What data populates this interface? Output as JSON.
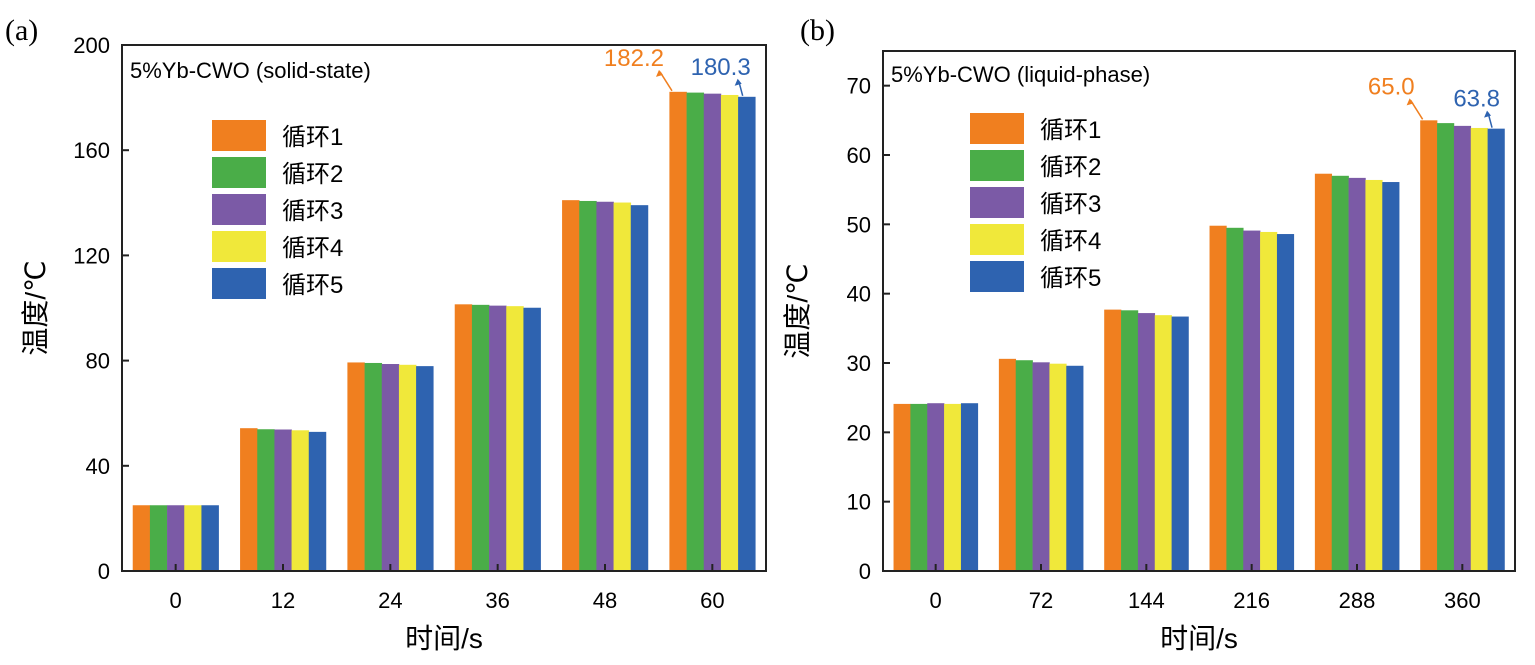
{
  "colors": {
    "series": [
      "#f07f1f",
      "#4aad48",
      "#7b5aa6",
      "#f0e83a",
      "#2e63b0"
    ],
    "axis": "#222222"
  },
  "chart_data": [
    {
      "type": "bar",
      "panel_label": "(a)",
      "title": "5%Yb-CWO (solid-state)",
      "xlabel": "时间/s",
      "ylabel": "温度/℃",
      "categories": [
        "0",
        "12",
        "24",
        "36",
        "48",
        "60"
      ],
      "ylim": [
        0,
        200
      ],
      "yticks": [
        0,
        40,
        80,
        120,
        160,
        200
      ],
      "grid": false,
      "legend_placement": "upper-left",
      "series": [
        {
          "name": "循环1",
          "values": [
            25.0,
            54.3,
            79.3,
            101.4,
            141.0,
            182.2
          ]
        },
        {
          "name": "循环2",
          "values": [
            25.0,
            53.9,
            79.1,
            101.2,
            140.7,
            181.9
          ]
        },
        {
          "name": "循环3",
          "values": [
            25.0,
            53.8,
            78.7,
            100.9,
            140.4,
            181.5
          ]
        },
        {
          "name": "循环4",
          "values": [
            25.0,
            53.5,
            78.4,
            100.7,
            140.1,
            181.0
          ]
        },
        {
          "name": "循环5",
          "values": [
            25.0,
            52.9,
            77.9,
            100.1,
            139.1,
            180.3
          ]
        }
      ],
      "annotations": [
        {
          "text": "182.2",
          "series": 0,
          "category": 5
        },
        {
          "text": "180.3",
          "series": 4,
          "category": 5
        }
      ]
    },
    {
      "type": "bar",
      "panel_label": "(b)",
      "title": "5%Yb-CWO (liquid-phase)",
      "xlabel": "时间/s",
      "ylabel": "温度/℃",
      "categories": [
        "0",
        "72",
        "144",
        "216",
        "288",
        "360"
      ],
      "ylim": [
        0,
        75
      ],
      "yticks": [
        0,
        10,
        20,
        30,
        40,
        50,
        60,
        70
      ],
      "grid": false,
      "legend_placement": "upper-left",
      "series": [
        {
          "name": "循环1",
          "values": [
            24.1,
            30.6,
            37.7,
            49.8,
            57.3,
            65.0
          ]
        },
        {
          "name": "循环2",
          "values": [
            24.1,
            30.4,
            37.6,
            49.5,
            57.0,
            64.6
          ]
        },
        {
          "name": "循环3",
          "values": [
            24.2,
            30.1,
            37.2,
            49.1,
            56.7,
            64.2
          ]
        },
        {
          "name": "循环4",
          "values": [
            24.1,
            29.9,
            36.9,
            48.9,
            56.4,
            63.9
          ]
        },
        {
          "name": "循环5",
          "values": [
            24.2,
            29.6,
            36.7,
            48.6,
            56.1,
            63.8
          ]
        }
      ],
      "annotations": [
        {
          "text": "65.0",
          "series": 0,
          "category": 5
        },
        {
          "text": "63.8",
          "series": 4,
          "category": 5
        }
      ]
    }
  ]
}
